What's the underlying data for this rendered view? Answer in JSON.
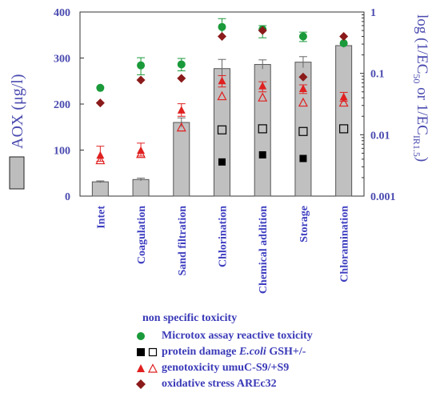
{
  "chart_data": {
    "type": "bar",
    "categories": [
      "Intet",
      "Coagulation",
      "Sand filtration",
      "Chlorination",
      "Chemical addition",
      "Storage",
      "Chloramination"
    ],
    "left_axis": {
      "label_main": "AOX (",
      "label_unit": "μg/l",
      "label_close": ")",
      "ylim": [
        0,
        400
      ],
      "ticks": [
        "0",
        "100",
        "200",
        "300",
        "400"
      ]
    },
    "right_axis": {
      "label_prefix": "log (1/EC",
      "label_sub1": "50",
      "label_mid": " or 1/EC",
      "label_sub2": "IR1.5",
      "label_close": ")",
      "scale": "log",
      "ylim": [
        0.001,
        1
      ],
      "ticks": [
        "1",
        "0.1",
        "0.01",
        "0.001"
      ]
    },
    "bars": {
      "name": "AOX",
      "values": [
        31,
        36,
        160,
        277,
        286,
        291,
        327
      ],
      "errors": [
        2,
        3,
        10,
        20,
        10,
        12,
        4
      ],
      "color": "#c0c0c0"
    },
    "series": [
      {
        "name": "Microtox assay reactive toxicity",
        "marker": "circle",
        "color": "#1a9a3a",
        "axis": "right",
        "values": [
          0.058,
          0.135,
          0.14,
          0.57,
          0.52,
          0.4,
          0.31
        ],
        "err_lo": [
          null,
          0.095,
          0.11,
          0.4,
          0.38,
          0.33,
          null
        ],
        "err_hi": [
          null,
          0.18,
          0.175,
          0.78,
          0.6,
          0.47,
          null
        ]
      },
      {
        "name": "protein damage E.coli GSH- (filled)",
        "marker": "square-filled",
        "color": "#000000",
        "axis": "right",
        "values": [
          null,
          null,
          null,
          0.0036,
          0.0047,
          0.0041,
          null
        ]
      },
      {
        "name": "protein damage E.coli GSH+ (open)",
        "marker": "square-open",
        "color": "#000000",
        "axis": "right",
        "values": [
          null,
          null,
          null,
          0.012,
          0.0125,
          0.0113,
          0.0125
        ]
      },
      {
        "name": "genotoxicity umuC-S9 (filled)",
        "marker": "triangle-filled",
        "color": "#e02020",
        "axis": "right",
        "values": [
          0.0046,
          0.0055,
          0.025,
          0.075,
          0.062,
          0.056,
          0.041
        ],
        "err_lo": [
          0.0037,
          0.0045,
          0.02,
          0.06,
          0.05,
          0.047,
          0.035
        ],
        "err_hi": [
          0.0065,
          0.0073,
          0.032,
          0.092,
          0.073,
          0.065,
          0.049
        ]
      },
      {
        "name": "genotoxicity umuC+S9 (open)",
        "marker": "triangle-open",
        "color": "#e02020",
        "axis": "right",
        "values": [
          0.0038,
          0.0048,
          0.013,
          0.042,
          0.04,
          0.033,
          0.033
        ]
      },
      {
        "name": "oxidative stress AREc32",
        "marker": "diamond",
        "color": "#8b1a1a",
        "axis": "right",
        "values": [
          0.033,
          0.078,
          0.083,
          0.4,
          0.5,
          0.087,
          0.4
        ]
      }
    ],
    "legend": {
      "heading": "non specific toxicity",
      "items": [
        {
          "label": "Microtox assay reactive toxicity"
        },
        {
          "label_prefix": "protein damage ",
          "label_italic": "E.coli",
          "label_suffix": " GSH+/-"
        },
        {
          "label": "genotoxicity umuC-S9/+S9"
        },
        {
          "label": "oxidative stress AREc32"
        }
      ]
    }
  }
}
